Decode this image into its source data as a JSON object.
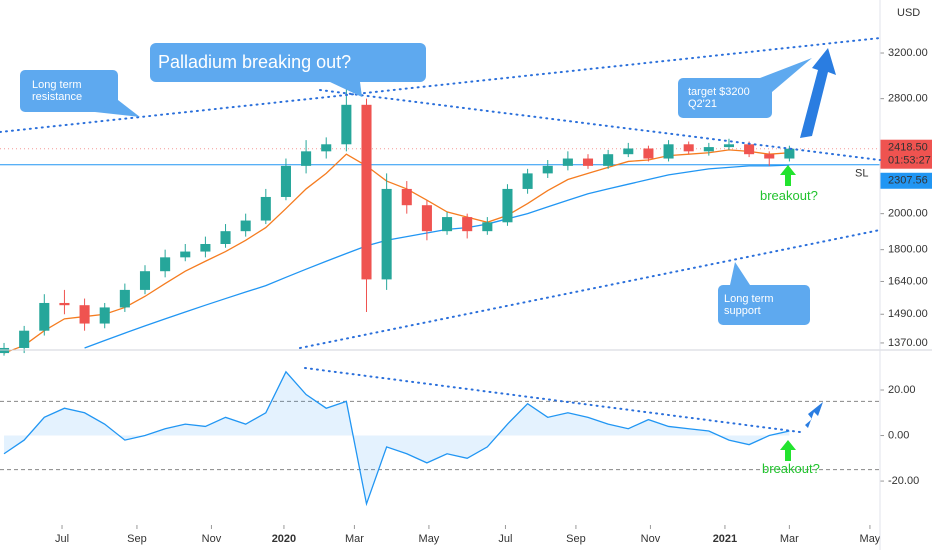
{
  "chart_data": [
    {
      "type": "candlestick",
      "axis_unit": "USD",
      "log_scale": true,
      "xlim": [
        -0.2,
        43.5
      ],
      "ylim": [
        1342,
        3737
      ],
      "xticks": [
        {
          "value": 2.88,
          "label": "Jul"
        },
        {
          "value": 6.6,
          "label": "Sep"
        },
        {
          "value": 10.3,
          "label": "Nov"
        },
        {
          "value": 13.9,
          "label": "2020"
        },
        {
          "value": 17.4,
          "label": "Mar"
        },
        {
          "value": 21.1,
          "label": "May"
        },
        {
          "value": 24.9,
          "label": "Jul"
        },
        {
          "value": 28.4,
          "label": "Sep"
        },
        {
          "value": 32.1,
          "label": "Nov"
        },
        {
          "value": 35.8,
          "label": "2021"
        },
        {
          "value": 39.0,
          "label": "Mar"
        },
        {
          "value": 43.0,
          "label": "May"
        }
      ],
      "yticks": [
        {
          "value": 1370,
          "label": "1370.00"
        },
        {
          "value": 1490,
          "label": "1490.00"
        },
        {
          "value": 1640,
          "label": "1640.00"
        },
        {
          "value": 1800,
          "label": "1800.00"
        },
        {
          "value": 2000,
          "label": "2000.00"
        },
        {
          "value": 2800,
          "label": "2800.00"
        },
        {
          "value": 3200,
          "label": "3200.00"
        }
      ],
      "up_color": "#26a69a",
      "down_color": "#ef5350",
      "open": [
        1330,
        1350,
        1420,
        1540,
        1530,
        1450,
        1520,
        1600,
        1690,
        1760,
        1790,
        1830,
        1900,
        1960,
        2100,
        2300,
        2400,
        2450,
        2750,
        1650,
        2150,
        2050,
        1900,
        1980,
        1900,
        1950,
        2150,
        2250,
        2300,
        2350,
        2300,
        2380,
        2420,
        2350,
        2450,
        2400,
        2430,
        2450,
        2380,
        2350
      ],
      "high": [
        1370,
        1440,
        1580,
        1600,
        1560,
        1540,
        1630,
        1720,
        1800,
        1830,
        1870,
        1940,
        2000,
        2150,
        2350,
        2480,
        2500,
        2880,
        2800,
        2250,
        2200,
        2080,
        2010,
        2000,
        1980,
        2180,
        2280,
        2340,
        2400,
        2380,
        2410,
        2460,
        2440,
        2480,
        2470,
        2460,
        2490,
        2470,
        2400,
        2440
      ],
      "low": [
        1320,
        1330,
        1400,
        1490,
        1420,
        1430,
        1500,
        1580,
        1660,
        1740,
        1760,
        1810,
        1870,
        1940,
        2080,
        2250,
        2350,
        2400,
        1500,
        1600,
        2000,
        1850,
        1880,
        1860,
        1880,
        1930,
        2120,
        2220,
        2270,
        2280,
        2280,
        2360,
        2330,
        2330,
        2380,
        2370,
        2410,
        2360,
        2300,
        2330
      ],
      "close": [
        1350,
        1420,
        1540,
        1530,
        1450,
        1520,
        1600,
        1690,
        1760,
        1790,
        1830,
        1900,
        1960,
        2100,
        2300,
        2400,
        2450,
        2750,
        1650,
        2150,
        2050,
        1900,
        1980,
        1900,
        1950,
        2150,
        2250,
        2300,
        2350,
        2300,
        2380,
        2420,
        2350,
        2450,
        2400,
        2430,
        2450,
        2380,
        2350,
        2418.5
      ],
      "lines": [
        {
          "color": "#f57c20",
          "values": [
            1330,
            1360,
            1420,
            1470,
            1480,
            1490,
            1520,
            1570,
            1630,
            1690,
            1740,
            1790,
            1850,
            1920,
            2030,
            2150,
            2250,
            2380,
            2300,
            2200,
            2150,
            2080,
            2010,
            1980,
            1950,
            1990,
            2060,
            2140,
            2210,
            2250,
            2290,
            2330,
            2340,
            2370,
            2380,
            2390,
            2410,
            2400,
            2380,
            2390
          ]
        },
        {
          "color": "#2196f3",
          "values": [
            null,
            null,
            null,
            null,
            1350,
            1380,
            1410,
            1440,
            1470,
            1500,
            1530,
            1560,
            1590,
            1620,
            1660,
            1700,
            1740,
            1780,
            1820,
            1850,
            1870,
            1890,
            1910,
            1920,
            1940,
            1970,
            2000,
            2040,
            2080,
            2120,
            2150,
            2180,
            2210,
            2240,
            2260,
            2280,
            2290,
            2300,
            2300,
            2305
          ]
        }
      ],
      "last_price": {
        "value": 2418.5,
        "label": "2418.50",
        "countdown": "01:53:27",
        "color": "#ef5350"
      },
      "stop_loss": {
        "value": 2307.56,
        "label": "2307.56",
        "text": "SL",
        "color": "#2196f3"
      },
      "annotations": {
        "headline": "Palladium breaking out?",
        "resistance": "Long term\nresistance",
        "target": "target $3200\nQ2'21",
        "support": "Long term\nsupport",
        "breakout": "breakout?"
      }
    },
    {
      "type": "line",
      "color": "#2196f3",
      "ylim": [
        -39.3,
        36.7
      ],
      "yticks": [
        {
          "value": 20,
          "label": "20.00"
        },
        {
          "value": 0,
          "label": "0.00"
        },
        {
          "value": -20,
          "label": "-20.00"
        }
      ],
      "levels": [
        15,
        -15
      ],
      "values": [
        -8,
        -2,
        8,
        12,
        10,
        5,
        -2,
        0,
        3,
        5,
        4,
        8,
        5,
        10,
        28,
        18,
        12,
        15,
        -30,
        -5,
        -8,
        -12,
        -8,
        -10,
        -5,
        5,
        14,
        8,
        10,
        8,
        5,
        3,
        7,
        4,
        3,
        2,
        -2,
        -4,
        0,
        2
      ],
      "annotations": {
        "breakout": "breakout?"
      }
    }
  ]
}
